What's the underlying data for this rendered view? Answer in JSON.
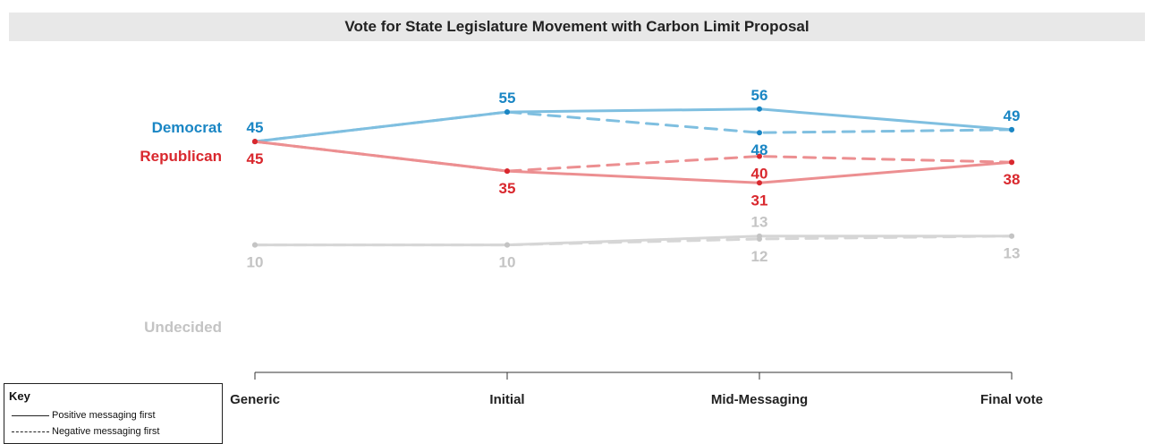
{
  "chart_data": {
    "type": "line",
    "title": "Vote for State Legislature Movement with Carbon Limit Proposal",
    "categories": [
      "Generic",
      "Initial",
      "Mid-Messaging",
      "Final vote"
    ],
    "ylim": [
      0,
      60
    ],
    "grid": false,
    "series": [
      {
        "name": "Democrat",
        "style": "solid",
        "color": "#1a86c4",
        "line_color": "#7fbfe0",
        "values": [
          45,
          55,
          56,
          49
        ]
      },
      {
        "name": "Democrat",
        "style": "dashed",
        "color": "#1a86c4",
        "line_color": "#7fbfe0",
        "values": [
          45,
          55,
          48,
          49
        ]
      },
      {
        "name": "Republican",
        "style": "solid",
        "color": "#d9282e",
        "line_color": "#ec8f91",
        "values": [
          45,
          35,
          31,
          38
        ]
      },
      {
        "name": "Republican",
        "style": "dashed",
        "color": "#d9282e",
        "line_color": "#ec8f91",
        "values": [
          45,
          35,
          40,
          38
        ]
      },
      {
        "name": "Undecided",
        "style": "solid",
        "color": "#c4c4c4",
        "line_color": "#d6d6d6",
        "values": [
          10,
          10,
          13,
          13
        ]
      },
      {
        "name": "Undecided",
        "style": "dashed",
        "color": "#c4c4c4",
        "line_color": "#d6d6d6",
        "values": [
          10,
          10,
          12,
          13
        ]
      }
    ],
    "data_labels": [
      {
        "text": "45",
        "series": "Democrat",
        "x": "Generic",
        "y": 45,
        "pos": "above",
        "color": "#1a86c4"
      },
      {
        "text": "55",
        "series": "Democrat",
        "x": "Initial",
        "y": 55,
        "pos": "above",
        "color": "#1a86c4"
      },
      {
        "text": "56",
        "series": "Democrat",
        "x": "Mid-Messaging",
        "y": 56,
        "pos": "above",
        "color": "#1a86c4"
      },
      {
        "text": "48",
        "series": "Democrat",
        "x": "Mid-Messaging",
        "y": 48,
        "pos": "below",
        "color": "#1a86c4"
      },
      {
        "text": "49",
        "series": "Democrat",
        "x": "Final vote",
        "y": 49,
        "pos": "above",
        "color": "#1a86c4"
      },
      {
        "text": "45",
        "series": "Republican",
        "x": "Generic",
        "y": 45,
        "pos": "below",
        "color": "#d9282e"
      },
      {
        "text": "35",
        "series": "Republican",
        "x": "Initial",
        "y": 35,
        "pos": "below",
        "color": "#d9282e"
      },
      {
        "text": "40",
        "series": "Republican",
        "x": "Mid-Messaging",
        "y": 40,
        "pos": "below",
        "color": "#d9282e"
      },
      {
        "text": "31",
        "series": "Republican",
        "x": "Mid-Messaging",
        "y": 31,
        "pos": "below",
        "color": "#d9282e"
      },
      {
        "text": "38",
        "series": "Republican",
        "x": "Final vote",
        "y": 38,
        "pos": "below",
        "color": "#d9282e"
      },
      {
        "text": "10",
        "series": "Undecided",
        "x": "Generic",
        "y": 10,
        "pos": "below",
        "color": "#c4c4c4"
      },
      {
        "text": "10",
        "series": "Undecided",
        "x": "Initial",
        "y": 10,
        "pos": "below",
        "color": "#c4c4c4"
      },
      {
        "text": "13",
        "series": "Undecided",
        "x": "Mid-Messaging",
        "y": 13,
        "pos": "above",
        "color": "#c4c4c4"
      },
      {
        "text": "12",
        "series": "Undecided",
        "x": "Mid-Messaging",
        "y": 12,
        "pos": "below",
        "color": "#c4c4c4"
      },
      {
        "text": "13",
        "series": "Undecided",
        "x": "Final vote",
        "y": 13,
        "pos": "below",
        "color": "#c4c4c4"
      }
    ],
    "series_labels": [
      {
        "text": "Democrat",
        "color": "#1a86c4"
      },
      {
        "text": "Republican",
        "color": "#d9282e"
      },
      {
        "text": "Undecided",
        "color": "#c4c4c4"
      }
    ],
    "key": {
      "title": "Key",
      "items": [
        {
          "style": "solid",
          "label": "Positive messaging first"
        },
        {
          "style": "dashed",
          "label": "Negative messaging first"
        }
      ]
    }
  }
}
